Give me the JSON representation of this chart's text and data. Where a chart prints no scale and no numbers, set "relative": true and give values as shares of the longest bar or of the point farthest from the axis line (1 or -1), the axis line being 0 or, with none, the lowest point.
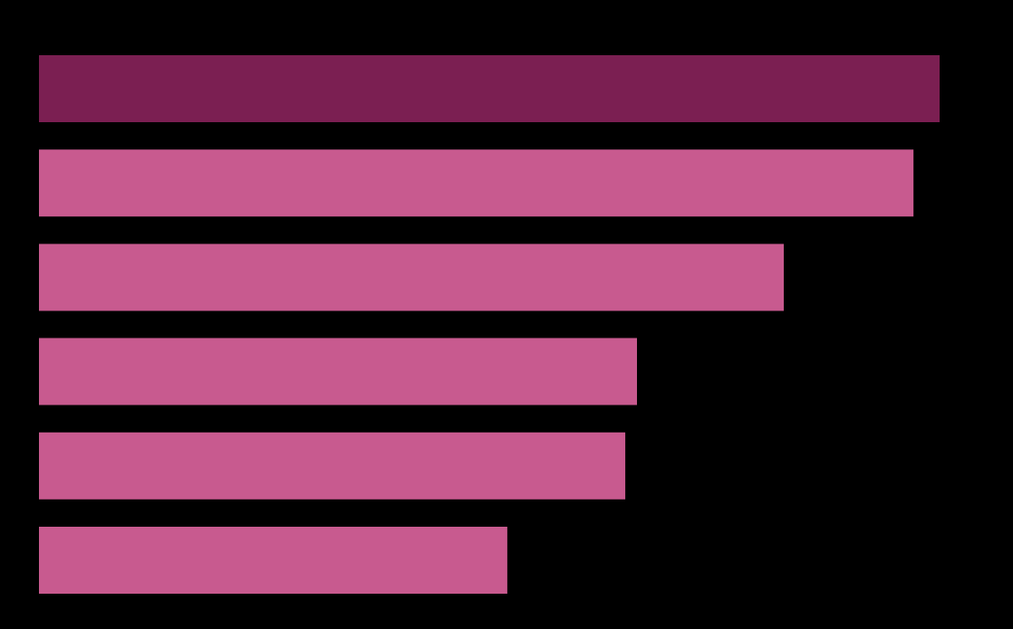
{
  "chart_data": {
    "type": "bar",
    "orientation": "horizontal",
    "relative": true,
    "categories": [
      null,
      null,
      null,
      null,
      null,
      null
    ],
    "values": [
      1,
      0.971,
      0.827,
      0.664,
      0.651,
      0.52
    ],
    "colors": [
      "#7b1f52",
      "#c85a8f",
      "#c85a8f",
      "#c85a8f",
      "#c85a8f",
      "#c85a8f"
    ]
  }
}
